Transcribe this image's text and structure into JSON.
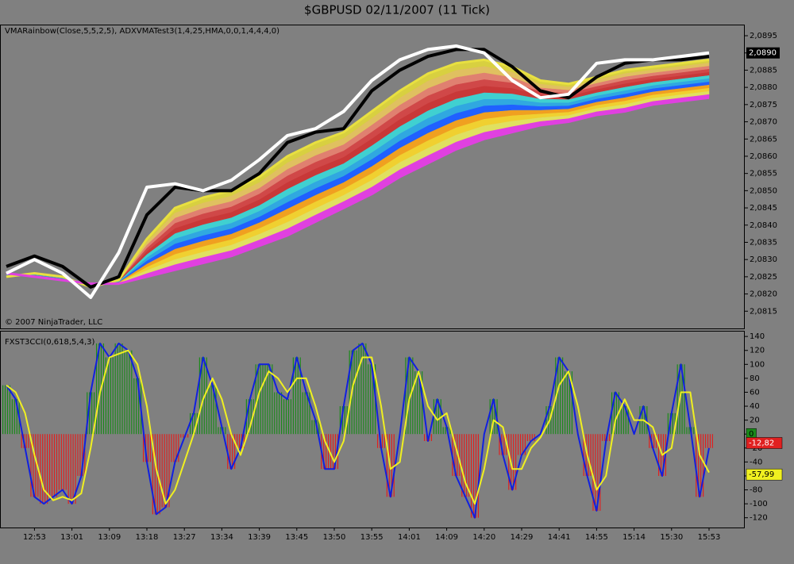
{
  "chart_data": [
    {
      "type": "line",
      "title": "$GBPUSD  02/11/2007  (11 Tick)",
      "indicator_label": "VMARainbow(Close,5,5,2,5), ADXVMATest3(1,4,25,HMA,0,0,1,4,4,4,0)",
      "copyright": "© 2007 NinjaTrader, LLC",
      "x": [
        0,
        3,
        6,
        9,
        12,
        15,
        18,
        21,
        24,
        27,
        30,
        33,
        36,
        39,
        42,
        45,
        48,
        51,
        54,
        57,
        60,
        63,
        66,
        69,
        72,
        75
      ],
      "xlim": [
        0,
        75
      ],
      "ylim": [
        2.081,
        2.0898
      ],
      "yticks": [
        {
          "value": 2.0895,
          "label": "2,0895"
        },
        {
          "value": 2.089,
          "label": "2,0890"
        },
        {
          "value": 2.0885,
          "label": "2,0885"
        },
        {
          "value": 2.088,
          "label": "2,0880"
        },
        {
          "value": 2.0875,
          "label": "2,0875"
        },
        {
          "value": 2.087,
          "label": "2,0870"
        },
        {
          "value": 2.0865,
          "label": "2,0865"
        },
        {
          "value": 2.086,
          "label": "2,0860"
        },
        {
          "value": 2.0855,
          "label": "2,0855"
        },
        {
          "value": 2.085,
          "label": "2,0850"
        },
        {
          "value": 2.0845,
          "label": "2,0845"
        },
        {
          "value": 2.084,
          "label": "2,0840"
        },
        {
          "value": 2.0835,
          "label": "2,0835"
        },
        {
          "value": 2.083,
          "label": "2,0830"
        },
        {
          "value": 2.0825,
          "label": "2,0825"
        },
        {
          "value": 2.082,
          "label": "2,0820"
        },
        {
          "value": 2.0815,
          "label": "2,0815"
        }
      ],
      "rainbow": true,
      "rainbow_colors": [
        "#d8d040",
        "#e0c060",
        "#e08070",
        "#d04848",
        "#c83838",
        "#40d0d0",
        "#30a8e0",
        "#2060ff",
        "#f0a020",
        "#f0d030",
        "#e0e060",
        "#e040e0"
      ],
      "series": [
        {
          "color": "#e8e040",
          "values": [
            2.0825,
            2.0826,
            2.0825,
            2.0822,
            2.0824,
            2.0836,
            2.0845,
            2.0848,
            2.085,
            2.0854,
            2.086,
            2.0864,
            2.0867,
            2.0873,
            2.0879,
            2.0884,
            2.0887,
            2.0888,
            2.0886,
            2.0882,
            2.0881,
            2.0883,
            2.0885,
            2.0886,
            2.0887,
            2.0888
          ]
        },
        {
          "color": "#e040e0",
          "values": [
            2.0826,
            2.0825,
            2.0824,
            2.0823,
            2.0823,
            2.0825,
            2.0827,
            2.0829,
            2.0831,
            2.0834,
            2.0837,
            2.0841,
            2.0845,
            2.0849,
            2.0854,
            2.0858,
            2.0862,
            2.0865,
            2.0867,
            2.0869,
            2.087,
            2.0872,
            2.0873,
            2.0875,
            2.0876,
            2.0877
          ]
        },
        {
          "color": "#000000",
          "values": [
            2.0828,
            2.0831,
            2.0828,
            2.0822,
            2.0825,
            2.0843,
            2.0851,
            2.085,
            2.085,
            2.0855,
            2.0864,
            2.0867,
            2.0868,
            2.0879,
            2.0885,
            2.0889,
            2.0891,
            2.0891,
            2.0886,
            2.0879,
            2.0877,
            2.0883,
            2.0887,
            2.0888,
            2.0888,
            2.0889
          ]
        },
        {
          "color": "#ffffff",
          "values": [
            2.0826,
            2.083,
            2.0826,
            2.0819,
            2.0832,
            2.0851,
            2.0852,
            2.085,
            2.0853,
            2.0859,
            2.0866,
            2.0868,
            2.0873,
            2.0882,
            2.0888,
            2.0891,
            2.0892,
            2.089,
            2.0882,
            2.0877,
            2.0878,
            2.0887,
            2.0888,
            2.0888,
            2.0889,
            2.089
          ]
        }
      ],
      "last_price": {
        "value": 2.089,
        "label": "2,0890"
      }
    },
    {
      "type": "line",
      "indicator_label": "FXST3CCI(0,618,5,4,3)",
      "x": [
        0,
        1,
        2,
        3,
        4,
        5,
        6,
        7,
        8,
        9,
        10,
        11,
        12,
        13,
        14,
        15,
        16,
        17,
        18,
        19,
        20,
        21,
        22,
        23,
        24,
        25,
        26,
        27,
        28,
        29,
        30,
        31,
        32,
        33,
        34,
        35,
        36,
        37,
        38,
        39,
        40,
        41,
        42,
        43,
        44,
        45,
        46,
        47,
        48,
        49,
        50,
        51,
        52,
        53,
        54,
        55,
        56,
        57,
        58,
        59,
        60,
        61,
        62,
        63,
        64,
        65,
        66,
        67,
        68,
        69,
        70,
        71,
        72,
        73,
        74,
        75
      ],
      "xlim": [
        0,
        75
      ],
      "xticks": [
        {
          "value": 3,
          "label": "12:53"
        },
        {
          "value": 7,
          "label": "13:01"
        },
        {
          "value": 11,
          "label": "13:09"
        },
        {
          "value": 15,
          "label": "13:18"
        },
        {
          "value": 19,
          "label": "13:27"
        },
        {
          "value": 23,
          "label": "13:34"
        },
        {
          "value": 27,
          "label": "13:39"
        },
        {
          "value": 31,
          "label": "13:45"
        },
        {
          "value": 35,
          "label": "13:50"
        },
        {
          "value": 39,
          "label": "13:55"
        },
        {
          "value": 43,
          "label": "14:01"
        },
        {
          "value": 47,
          "label": "14:09"
        },
        {
          "value": 51,
          "label": "14:20"
        },
        {
          "value": 55,
          "label": "14:29"
        },
        {
          "value": 59,
          "label": "14:41"
        },
        {
          "value": 63,
          "label": "14:55"
        },
        {
          "value": 67,
          "label": "15:14"
        },
        {
          "value": 71,
          "label": "15:30"
        },
        {
          "value": 75,
          "label": "15:53"
        }
      ],
      "ylim": [
        -134,
        147
      ],
      "yticks": [
        140,
        120,
        100,
        80,
        60,
        40,
        20,
        0,
        -20,
        -40,
        -60,
        -80,
        -100,
        -120
      ],
      "histogram": true,
      "bar_colors": {
        "up": "#1a8a1a",
        "down": "#e02020"
      },
      "series": [
        {
          "color": "#1020e0",
          "values": [
            70,
            50,
            -20,
            -90,
            -100,
            -90,
            -80,
            -100,
            -60,
            60,
            130,
            110,
            130,
            120,
            80,
            -40,
            -115,
            -105,
            -40,
            -5,
            30,
            110,
            70,
            10,
            -50,
            -20,
            50,
            100,
            100,
            60,
            50,
            110,
            60,
            20,
            -50,
            -50,
            40,
            120,
            130,
            100,
            -20,
            -90,
            0,
            110,
            90,
            -10,
            50,
            10,
            -60,
            -90,
            -120,
            0,
            50,
            -30,
            -80,
            -30,
            -10,
            0,
            40,
            110,
            90,
            0,
            -60,
            -110,
            -10,
            60,
            40,
            0,
            40,
            -20,
            -60,
            30,
            100,
            10,
            -90,
            -20
          ]
        },
        {
          "color": "#f0f020",
          "values": [
            70,
            60,
            30,
            -30,
            -80,
            -95,
            -90,
            -95,
            -85,
            -20,
            60,
            110,
            115,
            120,
            100,
            40,
            -50,
            -100,
            -80,
            -40,
            0,
            50,
            80,
            50,
            0,
            -30,
            10,
            60,
            90,
            80,
            60,
            80,
            80,
            40,
            -10,
            -40,
            -10,
            70,
            110,
            110,
            40,
            -50,
            -40,
            50,
            90,
            40,
            20,
            30,
            -20,
            -70,
            -100,
            -50,
            20,
            10,
            -50,
            -50,
            -20,
            -5,
            20,
            70,
            90,
            40,
            -30,
            -80,
            -60,
            20,
            50,
            20,
            20,
            10,
            -30,
            -20,
            60,
            60,
            -30,
            -55
          ]
        }
      ],
      "last_values": [
        {
          "value": 0,
          "label": "0",
          "color": "#1a8a1a"
        },
        {
          "value": -12.82,
          "label": "-12,82",
          "color": "#e02020"
        },
        {
          "value": -57.99,
          "label": "-57,99",
          "color": "#f0f020"
        }
      ]
    }
  ]
}
